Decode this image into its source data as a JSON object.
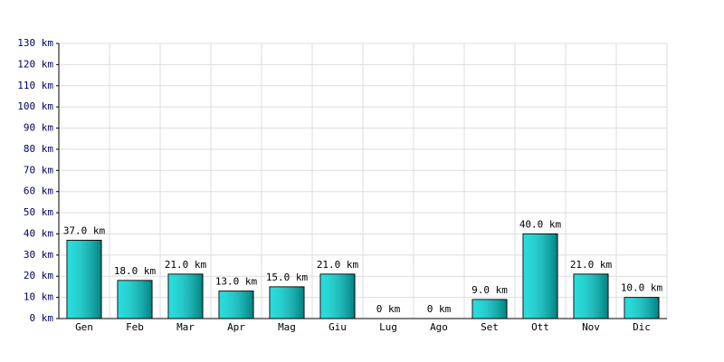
{
  "chart_data": {
    "type": "bar",
    "categories": [
      "Gen",
      "Feb",
      "Mar",
      "Apr",
      "Mag",
      "Giu",
      "Lug",
      "Ago",
      "Set",
      "Ott",
      "Nov",
      "Dic"
    ],
    "values": [
      37,
      18,
      21,
      13,
      15,
      21,
      0,
      0,
      9,
      40,
      21,
      10
    ],
    "value_labels": [
      "37.0 km",
      "18.0 km",
      "21.0 km",
      "13.0 km",
      "15.0 km",
      "21.0 km",
      "0 km",
      "0 km",
      "9.0 km",
      "40.0 km",
      "21.0 km",
      "10.0 km"
    ],
    "color": "#00d8d8",
    "ylim": [
      0,
      130
    ],
    "yticks": [
      {
        "value": 0,
        "label": "0 km"
      },
      {
        "value": 10,
        "label": "10 km"
      },
      {
        "value": 20,
        "label": "20 km"
      },
      {
        "value": 30,
        "label": "30 km"
      },
      {
        "value": 40,
        "label": "40 km"
      },
      {
        "value": 50,
        "label": "50 km"
      },
      {
        "value": 60,
        "label": "60 km"
      },
      {
        "value": 70,
        "label": "70 km"
      },
      {
        "value": 80,
        "label": "80 km"
      },
      {
        "value": 90,
        "label": "90 km"
      },
      {
        "value": 100,
        "label": "100 km"
      },
      {
        "value": 110,
        "label": "110 km"
      },
      {
        "value": 120,
        "label": "120 km"
      },
      {
        "value": 130,
        "label": "130 km"
      }
    ],
    "grid": true
  }
}
